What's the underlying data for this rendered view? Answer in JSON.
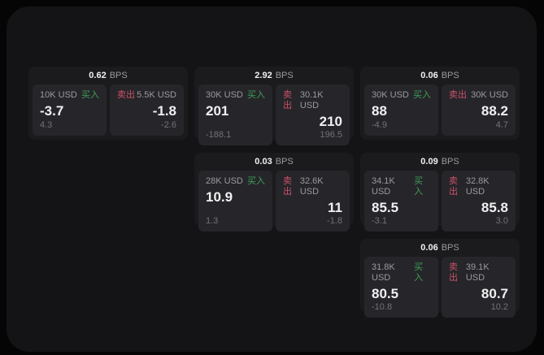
{
  "page": {
    "background": "#050505",
    "surface": "#141416",
    "card_bg": "#1b1b1d",
    "panel_bg": "#26262a",
    "text_primary": "#f0f0f2",
    "text_secondary": "#9a9a9e",
    "text_muted": "#737377",
    "buy_color": "#3f9e58",
    "sell_color": "#cc5068"
  },
  "cards": [
    {
      "bps_value": "0.62",
      "bps_unit": "BPS",
      "buy": {
        "size": "10K USD",
        "label": "买入",
        "price": "-3.7",
        "change": "4.3"
      },
      "sell": {
        "label": "卖出",
        "size": "5.5K USD",
        "price": "-1.8",
        "change": "-2.6"
      }
    },
    {
      "bps_value": "2.92",
      "bps_unit": "BPS",
      "buy": {
        "size": "30K USD",
        "label": "买入",
        "price": "201",
        "change": "-188.1"
      },
      "sell": {
        "label": "卖出",
        "size": "30.1K USD",
        "price": "210",
        "change": "196.5"
      }
    },
    {
      "bps_value": "0.06",
      "bps_unit": "BPS",
      "buy": {
        "size": "30K USD",
        "label": "买入",
        "price": "88",
        "change": "-4.9"
      },
      "sell": {
        "label": "卖出",
        "size": "30K USD",
        "price": "88.2",
        "change": "4.7"
      }
    },
    {
      "bps_value": "0.03",
      "bps_unit": "BPS",
      "buy": {
        "size": "28K USD",
        "label": "买入",
        "price": "10.9",
        "change": "1.3"
      },
      "sell": {
        "label": "卖出",
        "size": "32.6K USD",
        "price": "11",
        "change": "-1.8"
      }
    },
    {
      "bps_value": "0.09",
      "bps_unit": "BPS",
      "buy": {
        "size": "34.1K USD",
        "label": "买入",
        "price": "85.5",
        "change": "-3.1"
      },
      "sell": {
        "label": "卖出",
        "size": "32.8K USD",
        "price": "85.8",
        "change": "3.0"
      }
    },
    {
      "bps_value": "0.06",
      "bps_unit": "BPS",
      "buy": {
        "size": "31.8K USD",
        "label": "买入",
        "price": "80.5",
        "change": "-10.8"
      },
      "sell": {
        "label": "卖出",
        "size": "39.1K USD",
        "price": "80.7",
        "change": "10.2"
      }
    }
  ]
}
